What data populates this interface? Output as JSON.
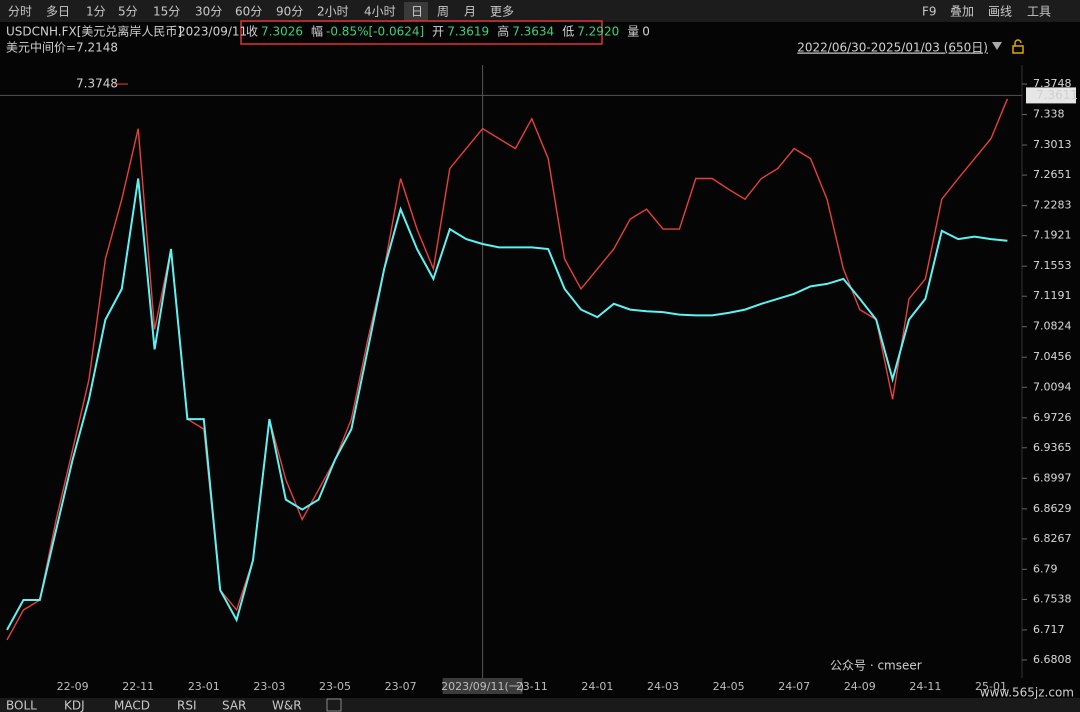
{
  "toolbar": {
    "periods": [
      "分时",
      "多日",
      "1分",
      "5分",
      "15分",
      "30分",
      "60分",
      "90分",
      "2小时",
      "4小时",
      "日",
      "周",
      "月",
      "更多"
    ],
    "tools": [
      "F9",
      "叠加",
      "画线",
      "工具"
    ]
  },
  "header": {
    "symbol": "USDCNH.FX[美元兑离岸人民币]",
    "date": "2023/09/11",
    "quote": [
      {
        "label": "收",
        "value": "7.3026"
      },
      {
        "label": "幅",
        "value": "-0.85%[-0.0624]"
      },
      {
        "label": "开",
        "value": "7.3619"
      },
      {
        "label": "高",
        "value": "7.3634"
      },
      {
        "label": "低",
        "value": "7.2920"
      },
      {
        "label": "量",
        "value": "0"
      }
    ],
    "range": "2022/06/30-2025/01/03 (650日)",
    "mid_label": "美元中间价=7.2148"
  },
  "chart_data": {
    "type": "line",
    "categories": [
      null,
      null,
      null,
      null,
      "22-09",
      null,
      null,
      null,
      "22-11",
      null,
      null,
      null,
      "23-01",
      null,
      null,
      null,
      "23-03",
      null,
      null,
      null,
      "23-05",
      null,
      null,
      null,
      "23-07",
      null,
      null,
      null,
      null,
      "2023/09/11(一)",
      null,
      null,
      "23-11",
      null,
      null,
      null,
      "24-01",
      null,
      null,
      null,
      "24-03",
      null,
      null,
      null,
      "24-05",
      null,
      null,
      null,
      "24-07",
      null,
      null,
      null,
      "24-09",
      null,
      null,
      null,
      "24-11",
      null,
      null,
      null,
      "25-01",
      null
    ],
    "series": [
      {
        "color": "#e8403a",
        "values": [
          6.705,
          6.741,
          6.753,
          6.85,
          6.934,
          7.019,
          7.164,
          7.236,
          7.321,
          7.079,
          7.176,
          6.971,
          6.959,
          6.765,
          6.741,
          6.801,
          6.971,
          6.898,
          6.85,
          6.886,
          6.922,
          6.971,
          7.067,
          7.152,
          7.261,
          7.2,
          7.152,
          7.273,
          7.297,
          7.321,
          7.309,
          7.297,
          7.333,
          7.285,
          7.164,
          7.128,
          7.152,
          7.176,
          7.212,
          7.224,
          7.2,
          7.2,
          7.261,
          7.261,
          7.248,
          7.236,
          7.261,
          7.273,
          7.297,
          7.285,
          7.236,
          7.152,
          7.103,
          7.091,
          6.995,
          7.116,
          7.14,
          7.236,
          7.261,
          7.285,
          7.309,
          7.357
        ]
      },
      {
        "color": "#5ff2f2",
        "values": [
          6.717,
          6.753,
          6.753,
          6.838,
          6.922,
          6.995,
          7.091,
          7.128,
          7.261,
          7.055,
          7.176,
          6.971,
          6.971,
          6.765,
          6.729,
          6.801,
          6.971,
          6.874,
          6.862,
          6.874,
          6.922,
          6.959,
          7.055,
          7.152,
          7.224,
          7.176,
          7.14,
          7.2,
          7.188,
          7.182,
          7.178,
          7.178,
          7.178,
          7.176,
          7.128,
          7.103,
          7.094,
          7.11,
          7.103,
          7.101,
          7.1,
          7.097,
          7.096,
          7.096,
          7.099,
          7.103,
          7.11,
          7.116,
          7.122,
          7.131,
          7.134,
          7.14,
          7.116,
          7.091,
          7.019,
          7.091,
          7.116,
          7.198,
          7.188,
          7.191,
          7.188,
          7.186
        ]
      }
    ],
    "ylim": [
      6.6687,
      7.3857
    ],
    "yticks": [
      7.3748,
      7.338,
      7.3013,
      7.2651,
      7.2283,
      7.1921,
      7.1553,
      7.1191,
      7.0824,
      7.0456,
      7.0094,
      6.9726,
      6.9365,
      6.8997,
      6.8629,
      6.8267,
      6.79,
      6.7538,
      6.717,
      6.6808
    ],
    "max_label": 7.3748,
    "crosshair_value": 7.3611
  },
  "indicators": [
    "BOLL",
    "KDJ",
    "MACD",
    "RSI",
    "SAR",
    "W&R"
  ],
  "watermark": {
    "account": "公众号 · cmseer",
    "site": "www.565jz.com"
  }
}
